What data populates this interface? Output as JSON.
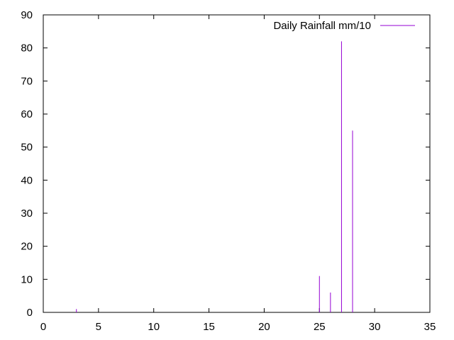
{
  "chart_data": {
    "type": "bar",
    "style": "impulses",
    "title": "",
    "xlabel": "",
    "ylabel": "",
    "xlim": [
      0,
      35
    ],
    "ylim": [
      0,
      90
    ],
    "x_ticks": [
      0,
      5,
      10,
      15,
      20,
      25,
      30,
      35
    ],
    "y_ticks": [
      0,
      10,
      20,
      30,
      40,
      50,
      60,
      70,
      80,
      90
    ],
    "grid": false,
    "legend_position": "top-right",
    "series": [
      {
        "name": "Daily Rainfall mm/10",
        "color": "#9400d3",
        "x": [
          3,
          25,
          26,
          27,
          28
        ],
        "values": [
          1,
          11,
          6,
          82,
          55
        ]
      }
    ]
  }
}
